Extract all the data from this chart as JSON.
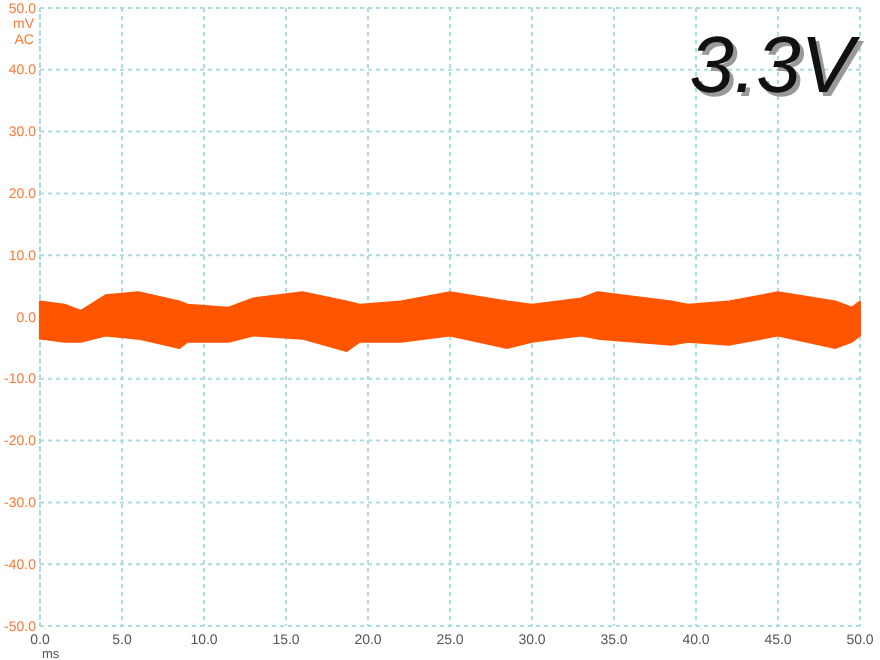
{
  "chart_data": {
    "type": "area",
    "title": "3.3V",
    "xlabel": "ms",
    "ylabel": "mV AC",
    "x": [
      0,
      1.5,
      2.5,
      4,
      6,
      8.5,
      9,
      11.5,
      13,
      16,
      18.7,
      19.5,
      22,
      25,
      28.5,
      30,
      33,
      34,
      38.5,
      39.5,
      42,
      45,
      48.5,
      49.5,
      50
    ],
    "series": [
      {
        "color": "#ff5500",
        "values": [
          2.5,
          2,
          1,
          3.5,
          4,
          2.5,
          2,
          1.5,
          3,
          4,
          2.5,
          2,
          2.5,
          4,
          2.5,
          2,
          3,
          4,
          2.5,
          2,
          2.5,
          4,
          2.5,
          1.5,
          2.5
        ]
      },
      {
        "color": "#ff5500",
        "values": [
          -3.5,
          -4,
          -4,
          -3,
          -3.5,
          -5,
          -4,
          -4,
          -3,
          -3.5,
          -5.5,
          -4,
          -4,
          -3,
          -5,
          -4,
          -3,
          -3.5,
          -4.5,
          -4,
          -4.5,
          -3,
          -5,
          -4,
          -3
        ]
      }
    ],
    "xlim": [
      0,
      50
    ],
    "ylim": [
      -50,
      50
    ],
    "xticks": [
      {
        "value": 0,
        "label": "0.0"
      },
      {
        "value": 5,
        "label": "5.0"
      },
      {
        "value": 10,
        "label": "10.0"
      },
      {
        "value": 15,
        "label": "15.0"
      },
      {
        "value": 20,
        "label": "20.0"
      },
      {
        "value": 25,
        "label": "25.0"
      },
      {
        "value": 30,
        "label": "30.0"
      },
      {
        "value": 35,
        "label": "35.0"
      },
      {
        "value": 40,
        "label": "40.0"
      },
      {
        "value": 45,
        "label": "45.0"
      },
      {
        "value": 50,
        "label": "50.0"
      }
    ],
    "yticks": [
      {
        "value": -50,
        "label": "-50.0"
      },
      {
        "value": -40,
        "label": "-40.0"
      },
      {
        "value": -30,
        "label": "-30.0"
      },
      {
        "value": -20,
        "label": "-20.0"
      },
      {
        "value": -10,
        "label": "-10.0"
      },
      {
        "value": 0,
        "label": "0.0"
      },
      {
        "value": 10,
        "label": "10.0"
      },
      {
        "value": 20,
        "label": "20.0"
      },
      {
        "value": 30,
        "label": "30.0"
      },
      {
        "value": 40,
        "label": "40.0"
      },
      {
        "value": 50,
        "label": "50.0"
      }
    ],
    "grid": true
  }
}
